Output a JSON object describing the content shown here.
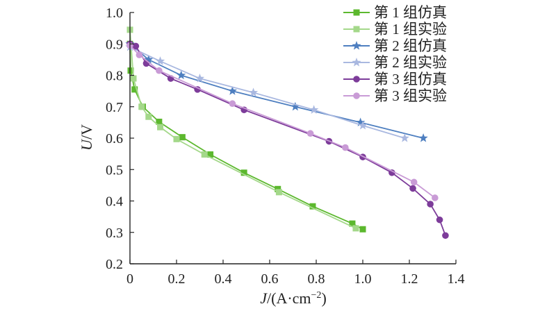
{
  "chart_data": {
    "type": "line",
    "xlabel_italic": "J",
    "xlabel_rest": "/(A·cm",
    "xlabel_sup": "−2",
    "xlabel_close": ")",
    "ylabel_italic": "U",
    "ylabel_rest": "/V",
    "xlim": [
      0,
      1.4
    ],
    "ylim": [
      0.2,
      1.0
    ],
    "xticks": [
      "0",
      "0.2",
      "0.4",
      "0.6",
      "0.8",
      "1.0",
      "1.2",
      "1.4"
    ],
    "yticks": [
      "0.2",
      "0.3",
      "0.4",
      "0.5",
      "0.6",
      "0.7",
      "0.8",
      "0.9",
      "1.0"
    ],
    "legend_position": "top-right",
    "grid": false,
    "series": [
      {
        "name": "第 1 组仿真",
        "color": "#5cb82e",
        "marker": "square",
        "x": [
          0,
          0.003,
          0.02,
          0.055,
          0.125,
          0.225,
          0.345,
          0.49,
          0.635,
          0.785,
          0.955,
          1.0
        ],
        "y": [
          0.9,
          0.815,
          0.755,
          0.7,
          0.652,
          0.603,
          0.548,
          0.49,
          0.438,
          0.383,
          0.328,
          0.31
        ]
      },
      {
        "name": "第 1 组实验",
        "color": "#a4d88a",
        "marker": "square",
        "x": [
          0,
          0.015,
          0.05,
          0.08,
          0.13,
          0.2,
          0.32,
          0.64,
          0.97
        ],
        "y": [
          0.945,
          0.79,
          0.7,
          0.668,
          0.635,
          0.597,
          0.548,
          0.428,
          0.313
        ]
      },
      {
        "name": "第 2 组仿真",
        "color": "#4e7fc0",
        "marker": "star",
        "x": [
          0,
          0.08,
          0.22,
          0.44,
          0.71,
          0.99,
          1.26
        ],
        "y": [
          0.9,
          0.85,
          0.8,
          0.75,
          0.7,
          0.65,
          0.6
        ]
      },
      {
        "name": "第 2 组实验",
        "color": "#a9b8e0",
        "marker": "star",
        "x": [
          0,
          0.13,
          0.3,
          0.53,
          0.79,
          1.0,
          1.18
        ],
        "y": [
          0.89,
          0.845,
          0.79,
          0.745,
          0.69,
          0.64,
          0.6
        ]
      },
      {
        "name": "第 3 组仿真",
        "color": "#7d3c9a",
        "marker": "circle",
        "x": [
          0,
          0.025,
          0.07,
          0.175,
          0.29,
          0.49,
          0.855,
          1.0,
          1.125,
          1.215,
          1.29,
          1.33,
          1.355
        ],
        "y": [
          0.9,
          0.893,
          0.838,
          0.79,
          0.755,
          0.69,
          0.59,
          0.54,
          0.49,
          0.44,
          0.39,
          0.34,
          0.29
        ]
      },
      {
        "name": "第 3 组实验",
        "color": "#c99bd6",
        "marker": "circle",
        "x": [
          0,
          0.04,
          0.125,
          0.44,
          0.775,
          0.925,
          1.22,
          1.31
        ],
        "y": [
          0.895,
          0.865,
          0.815,
          0.71,
          0.615,
          0.57,
          0.46,
          0.41
        ]
      }
    ]
  }
}
